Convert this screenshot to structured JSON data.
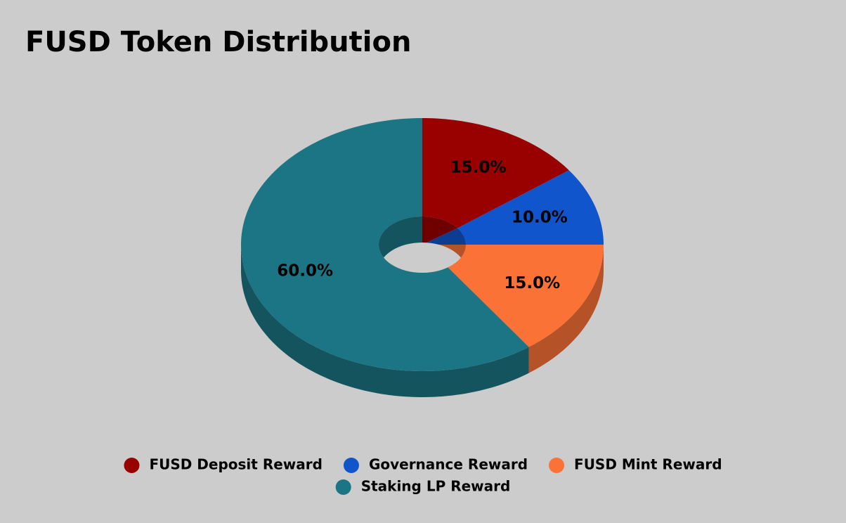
{
  "chart_data": {
    "type": "pie",
    "title": "FUSD Token Distribution",
    "categories": [
      "FUSD Deposit Reward",
      "Governance Reward",
      "FUSD Mint Reward",
      "Staking LP Reward"
    ],
    "values": [
      15,
      10,
      15,
      60
    ],
    "value_labels": [
      "15.0%",
      "10.0%",
      "15.0%",
      "60.0%"
    ],
    "colors": [
      "#990000",
      "#1155cc",
      "#fb7236",
      "#1b7584"
    ],
    "donut": true,
    "three_d": true,
    "legend": "bottom"
  }
}
